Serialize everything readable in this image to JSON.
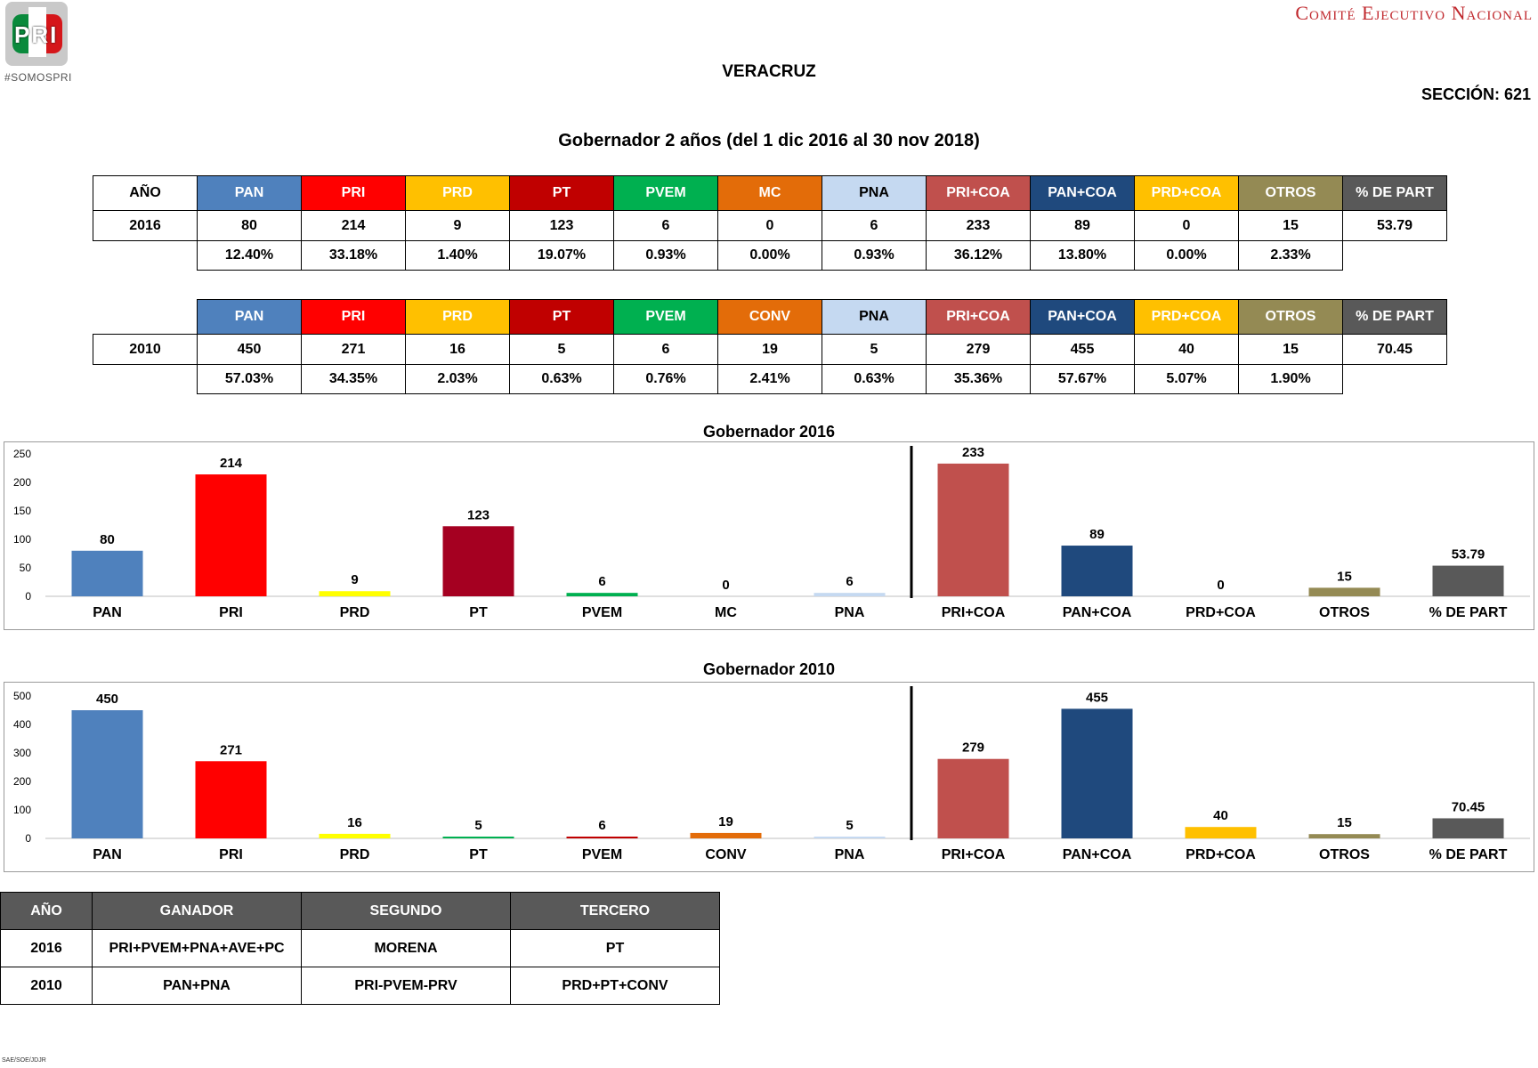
{
  "header": {
    "logo_text": "PRI",
    "tagline": "#SOMOSPRI",
    "organization": "Comité Ejecutivo Nacional",
    "state": "VERACRUZ",
    "seccion": "SECCIÓN: 621",
    "subtitle": "Gobernador 2 años (del 1 dic 2016 al 30 nov 2018)"
  },
  "colors": {
    "PAN": "#4f81bd",
    "PRI": "#ff0000",
    "PRD": "#ffc000",
    "PT": "#c00000",
    "PVEM": "#00b050",
    "MC": "#e36c09",
    "CONV": "#e36c09",
    "PNA": "#c5d9f1",
    "PRI+COA": "#c0504d",
    "PAN+COA": "#1f497d",
    "PRD+COA": "#ffc000",
    "OTROS": "#948a54",
    "PART": "#595959",
    "chart_PRD_2016": "#ffff00",
    "chart_PT_2016": "#a50021"
  },
  "table_2016": {
    "year_header": "AÑO",
    "headers": [
      "PAN",
      "PRI",
      "PRD",
      "PT",
      "PVEM",
      "MC",
      "PNA",
      "PRI+COA",
      "PAN+COA",
      "PRD+COA",
      "OTROS",
      "% DE PART"
    ],
    "year": "2016",
    "votes": [
      "80",
      "214",
      "9",
      "123",
      "6",
      "0",
      "6",
      "233",
      "89",
      "0",
      "15",
      "53.79"
    ],
    "percents": [
      "12.40%",
      "33.18%",
      "1.40%",
      "19.07%",
      "0.93%",
      "0.00%",
      "0.93%",
      "36.12%",
      "13.80%",
      "0.00%",
      "2.33%"
    ]
  },
  "table_2010": {
    "headers": [
      "PAN",
      "PRI",
      "PRD",
      "PT",
      "PVEM",
      "CONV",
      "PNA",
      "PRI+COA",
      "PAN+COA",
      "PRD+COA",
      "OTROS",
      "% DE PART"
    ],
    "year": "2010",
    "votes": [
      "450",
      "271",
      "16",
      "5",
      "6",
      "19",
      "5",
      "279",
      "455",
      "40",
      "15",
      "70.45"
    ],
    "percents": [
      "57.03%",
      "34.35%",
      "2.03%",
      "0.63%",
      "0.76%",
      "2.41%",
      "0.63%",
      "35.36%",
      "57.67%",
      "5.07%",
      "1.90%"
    ]
  },
  "chart_data": [
    {
      "type": "bar",
      "title": "Gobernador  2016",
      "categories": [
        "PAN",
        "PRI",
        "PRD",
        "PT",
        "PVEM",
        "MC",
        "PNA",
        "PRI+COA",
        "PAN+COA",
        "PRD+COA",
        "OTROS",
        "% DE PART"
      ],
      "values": [
        80,
        214,
        9,
        123,
        6,
        0,
        6,
        233,
        89,
        0,
        15,
        53.79
      ],
      "bar_colors": [
        "#4f81bd",
        "#ff0000",
        "#ffff00",
        "#a50021",
        "#00b050",
        "#e36c09",
        "#c5d9f1",
        "#c0504d",
        "#1f497d",
        "#ffc000",
        "#948a54",
        "#595959"
      ],
      "ylim": [
        0,
        250
      ],
      "yticks": [
        0,
        50,
        100,
        150,
        200,
        250
      ],
      "separator_after_category": "PNA",
      "grid": false,
      "legend": "none"
    },
    {
      "type": "bar",
      "title": "Gobernador  2010",
      "categories": [
        "PAN",
        "PRI",
        "PRD",
        "PT",
        "PVEM",
        "CONV",
        "PNA",
        "PRI+COA",
        "PAN+COA",
        "PRD+COA",
        "OTROS",
        "% DE PART"
      ],
      "values": [
        450,
        271,
        16,
        5,
        6,
        19,
        5,
        279,
        455,
        40,
        15,
        70.45
      ],
      "bar_colors": [
        "#4f81bd",
        "#ff0000",
        "#ffff00",
        "#00b050",
        "#c00000",
        "#e36c09",
        "#c5d9f1",
        "#c0504d",
        "#1f497d",
        "#ffc000",
        "#948a54",
        "#595959"
      ],
      "ylim": [
        0,
        500
      ],
      "yticks": [
        0,
        100,
        200,
        300,
        400,
        500
      ],
      "separator_after_category": "PNA",
      "grid": false,
      "legend": "none"
    }
  ],
  "winners": {
    "headers": [
      "AÑO",
      "GANADOR",
      "SEGUNDO",
      "TERCERO"
    ],
    "rows": [
      [
        "2016",
        "PRI+PVEM+PNA+AVE+PC",
        "MORENA",
        "PT"
      ],
      [
        "2010",
        "PAN+PNA",
        "PRI-PVEM-PRV",
        "PRD+PT+CONV"
      ]
    ]
  },
  "footer": "SAE/SOE/JDJR"
}
